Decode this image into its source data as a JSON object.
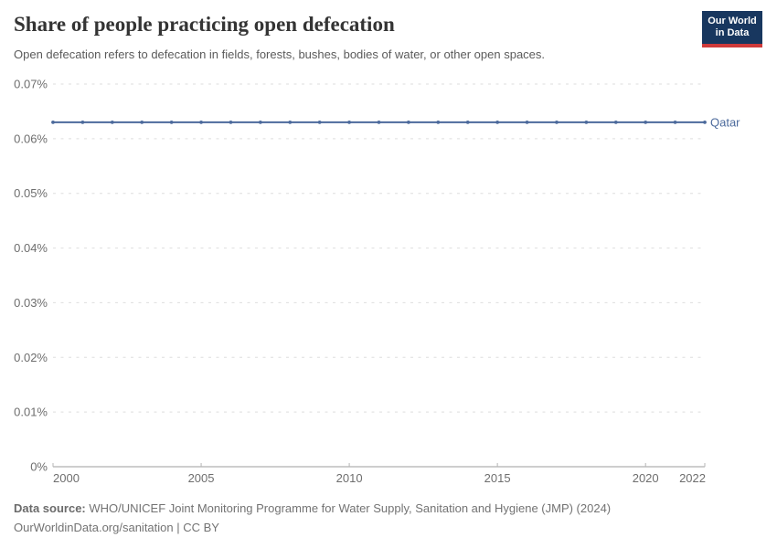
{
  "header": {
    "title": "Share of people practicing open defecation",
    "subtitle": "Open defecation refers to defecation in fields, forests, bushes, bodies of water, or other open spaces."
  },
  "logo": {
    "line1": "Our World",
    "line2": "in Data",
    "bg_color": "#18375f",
    "accent_color": "#cf3a3a"
  },
  "chart_data": {
    "type": "line",
    "title": "Share of people practicing open defecation",
    "unit": "%",
    "grid": true,
    "legend_position": "end-of-line",
    "xlabel": "",
    "ylabel": "",
    "ylim": [
      0,
      0.07
    ],
    "x": [
      2000,
      2001,
      2002,
      2003,
      2004,
      2005,
      2006,
      2007,
      2008,
      2009,
      2010,
      2011,
      2012,
      2013,
      2014,
      2015,
      2016,
      2017,
      2018,
      2019,
      2020,
      2021,
      2022
    ],
    "series": [
      {
        "name": "Qatar",
        "color": "#4c6a9c",
        "values": [
          0.063,
          0.063,
          0.063,
          0.063,
          0.063,
          0.063,
          0.063,
          0.063,
          0.063,
          0.063,
          0.063,
          0.063,
          0.063,
          0.063,
          0.063,
          0.063,
          0.063,
          0.063,
          0.063,
          0.063,
          0.063,
          0.063,
          0.063
        ]
      }
    ],
    "yticks": [
      {
        "value": 0,
        "label": "0%"
      },
      {
        "value": 0.01,
        "label": "0.01%"
      },
      {
        "value": 0.02,
        "label": "0.02%"
      },
      {
        "value": 0.03,
        "label": "0.03%"
      },
      {
        "value": 0.04,
        "label": "0.04%"
      },
      {
        "value": 0.05,
        "label": "0.05%"
      },
      {
        "value": 0.06,
        "label": "0.06%"
      },
      {
        "value": 0.07,
        "label": "0.07%"
      }
    ],
    "xticks": [
      {
        "value": 2000,
        "label": "2000"
      },
      {
        "value": 2005,
        "label": "2005"
      },
      {
        "value": 2010,
        "label": "2010"
      },
      {
        "value": 2015,
        "label": "2015"
      },
      {
        "value": 2020,
        "label": "2020"
      },
      {
        "value": 2022,
        "label": "2022"
      }
    ]
  },
  "footer": {
    "source_label": "Data source:",
    "source_text": "WHO/UNICEF Joint Monitoring Programme for Water Supply, Sanitation and Hygiene (JMP) (2024)",
    "license_text": "OurWorldinData.org/sanitation | CC BY"
  }
}
